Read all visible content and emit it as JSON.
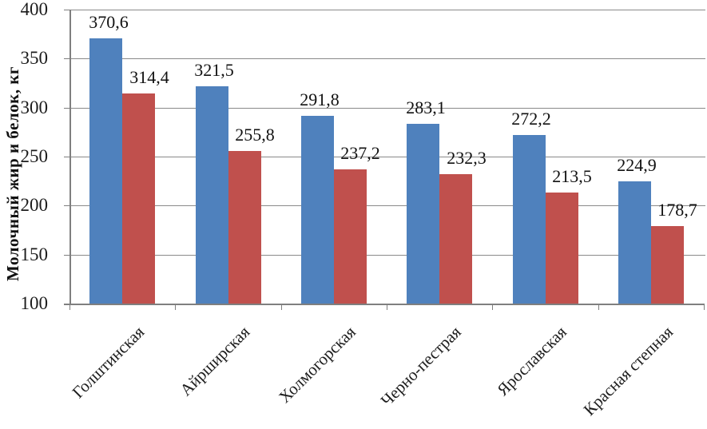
{
  "chart_data": {
    "type": "bar",
    "title": "",
    "ylabel": "Молочный жир и белок, кг",
    "xlabel": "",
    "ylim": [
      100,
      400
    ],
    "yticks": [
      100,
      150,
      200,
      250,
      300,
      350,
      400
    ],
    "ytick_labels": [
      "100",
      "150",
      "200",
      "250",
      "300",
      "350",
      "400"
    ],
    "grid": true,
    "legend": "none",
    "categories": [
      "Голштинская",
      "Айрширская",
      "Холмогорская",
      "Черно-пестрая",
      "Ярославская",
      "Красная степная"
    ],
    "series": [
      {
        "name": "blue-series",
        "color": "#4F81BD",
        "values": [
          370.6,
          321.5,
          291.8,
          283.1,
          272.2,
          224.9
        ],
        "labels": [
          "370,6",
          "321,5",
          "291,8",
          "283,1",
          "272,2",
          "224,9"
        ]
      },
      {
        "name": "red-series",
        "color": "#C0504D",
        "values": [
          314.4,
          255.8,
          237.2,
          232.3,
          213.5,
          178.7
        ],
        "labels": [
          "314,4",
          "255,8",
          "237,2",
          "232,3",
          "213,5",
          "178,7"
        ]
      }
    ]
  },
  "colors": {
    "axis": "#7f7f7f",
    "grid": "#8a8a8a",
    "text": "#1c1c1c"
  }
}
